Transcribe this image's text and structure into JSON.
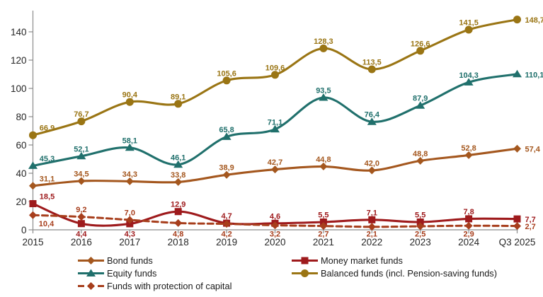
{
  "chart_data": {
    "type": "line",
    "title": "",
    "categories": [
      "2015",
      "2016",
      "2017",
      "2018",
      "2019",
      "2020",
      "2021",
      "2022",
      "2023",
      "2024",
      "Q3 2025"
    ],
    "y_axis": {
      "ticks": [
        0,
        20,
        40,
        60,
        80,
        100,
        120,
        140
      ],
      "range": [
        0,
        155
      ]
    },
    "grid": "off",
    "decimal_separator": ",",
    "legend_position": "bottom",
    "series": [
      {
        "key": "bond",
        "name": "Bond funds",
        "color": "#A4571E",
        "marker": "diamond",
        "line": "solid",
        "values": [
          31.1,
          34.5,
          34.3,
          33.8,
          38.9,
          42.7,
          44.8,
          42.0,
          48.8,
          52.8,
          57.4
        ],
        "label_placements": [
          "above-right",
          "above",
          "above",
          "above",
          "above",
          "above",
          "above",
          "above",
          "above",
          "above",
          "right"
        ]
      },
      {
        "key": "money",
        "name": "Money market funds",
        "color": "#9E1A1C",
        "marker": "square",
        "line": "solid",
        "values": [
          18.5,
          4.4,
          4.3,
          12.9,
          4.7,
          4.6,
          5.5,
          7.1,
          5.5,
          7.8,
          7.7
        ],
        "label_placements": [
          "above-right",
          "below-axis",
          "below-axis",
          "above",
          "above",
          "above",
          "above",
          "above",
          "above",
          "above",
          "right"
        ]
      },
      {
        "key": "equity",
        "name": "Equity funds",
        "color": "#20706C",
        "marker": "triangle",
        "line": "solid",
        "values": [
          45.3,
          52.1,
          58.1,
          46.1,
          65.8,
          71.1,
          93.5,
          76.4,
          87.9,
          104.3,
          110.1
        ],
        "label_placements": [
          "above-right",
          "above",
          "above",
          "above",
          "above",
          "above",
          "above",
          "above",
          "above",
          "above",
          "right"
        ]
      },
      {
        "key": "balanced",
        "name": "Balanced funds (incl. Pension-saving funds)",
        "color": "#9A7514",
        "marker": "circle",
        "line": "solid",
        "values": [
          66.9,
          76.7,
          90.4,
          89.1,
          105.6,
          109.6,
          128.3,
          113.5,
          126.6,
          141.5,
          148.7
        ],
        "label_placements": [
          "above-right",
          "above",
          "above",
          "above",
          "above",
          "above",
          "above",
          "above",
          "above",
          "above",
          "right"
        ]
      },
      {
        "key": "protection",
        "name": "Funds with protection of capital",
        "color": "#A73E1C",
        "marker": "diamond",
        "line": "dashed",
        "values": [
          10.4,
          9.2,
          7.0,
          4.8,
          4.2,
          3.2,
          2.7,
          2.1,
          2.5,
          2.9,
          2.7
        ],
        "label_placements": [
          "below-right",
          "above",
          "above",
          "below-axis",
          "below-axis",
          "below-axis",
          "below-axis",
          "below-axis",
          "below-axis",
          "below-axis",
          "right"
        ]
      }
    ],
    "legend": {
      "columns": [
        {
          "series_keys": [
            "bond",
            "equity",
            "protection"
          ]
        },
        {
          "series_keys": [
            "money",
            "balanced"
          ]
        }
      ]
    }
  },
  "style": {
    "background": "#FFFFFF",
    "axis_color": "#8C8C8C",
    "axis_label_color": "#262626",
    "legend_text_color": "#1A1A1A"
  }
}
